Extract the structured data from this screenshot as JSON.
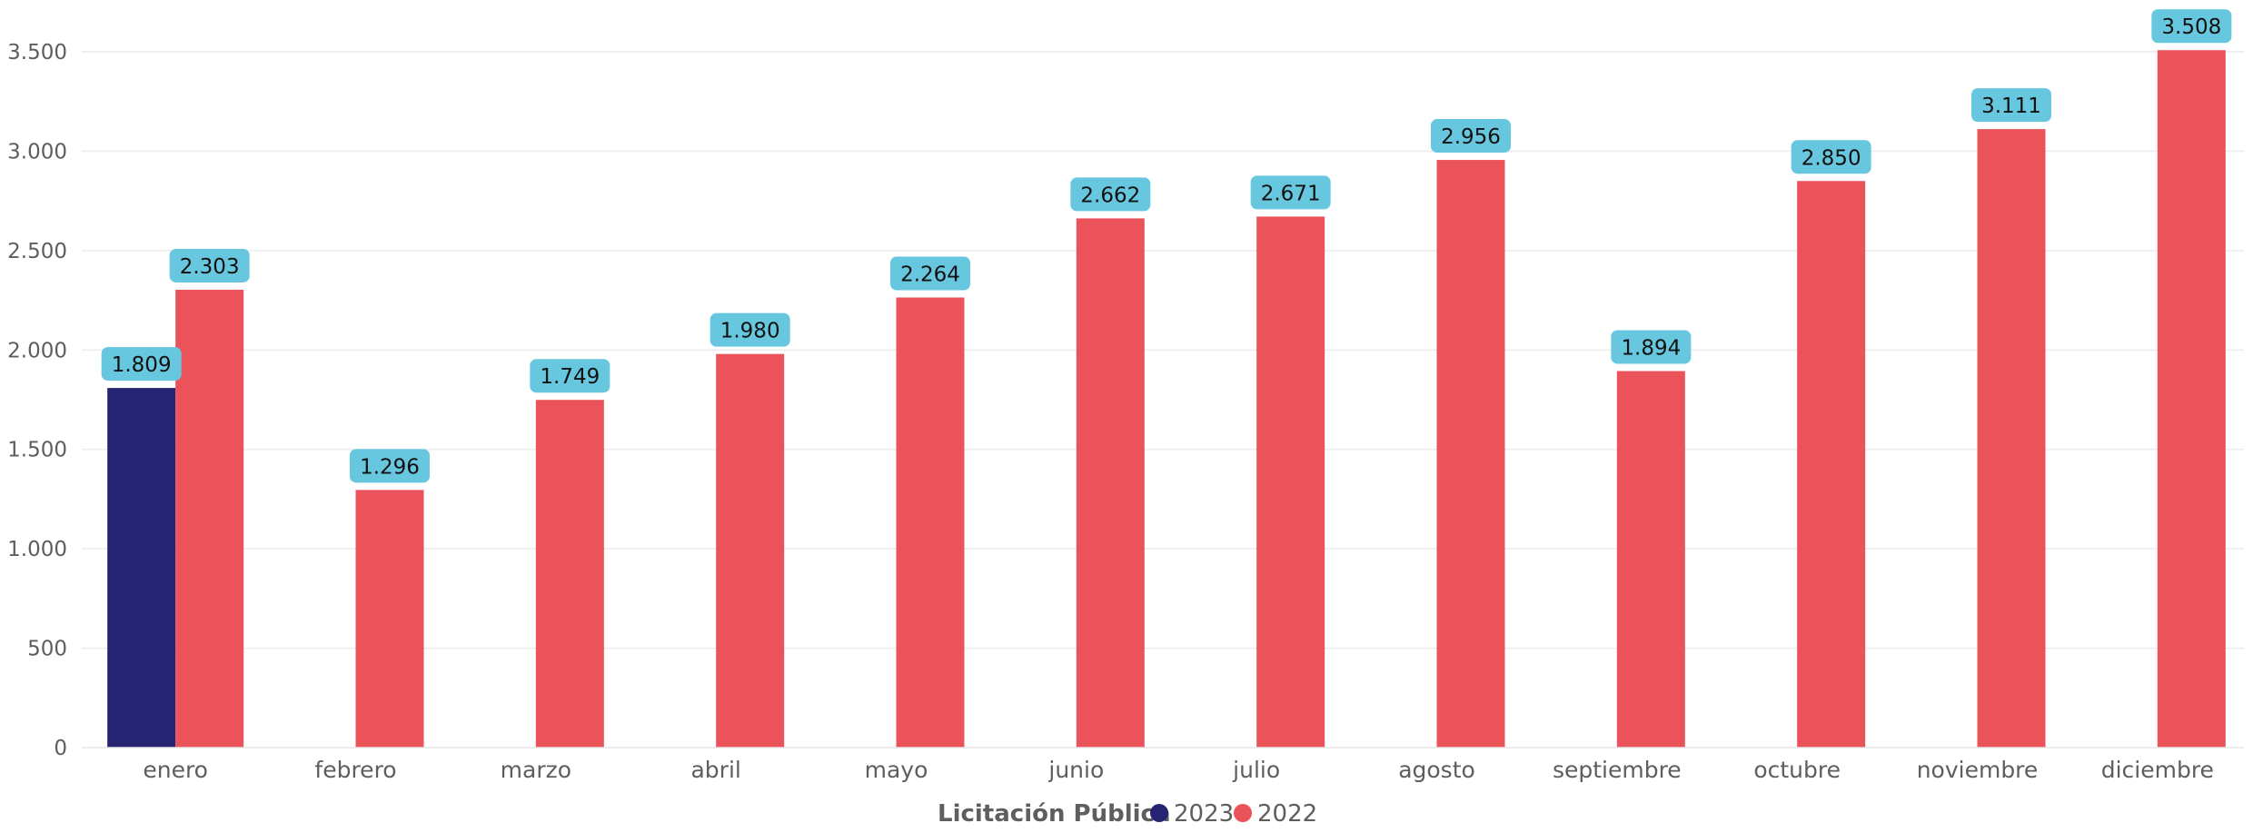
{
  "chart_data": {
    "type": "bar",
    "categories": [
      "enero",
      "febrero",
      "marzo",
      "abril",
      "mayo",
      "junio",
      "julio",
      "agosto",
      "septiembre",
      "octubre",
      "noviembre",
      "diciembre"
    ],
    "series": [
      {
        "name": "2023",
        "color": "#252574",
        "values": [
          1809,
          null,
          null,
          null,
          null,
          null,
          null,
          null,
          null,
          null,
          null,
          null
        ]
      },
      {
        "name": "2022",
        "color": "#EA535A",
        "values": [
          2303,
          1296,
          1749,
          1980,
          2264,
          2662,
          2671,
          2956,
          1894,
          2850,
          3111,
          3508
        ]
      }
    ],
    "data_labels": {
      "2023": [
        "1.809",
        "",
        "",
        "",
        "",
        "",
        "",
        "",
        "",
        "",
        "",
        ""
      ],
      "2022": [
        "2.303",
        "1.296",
        "1.749",
        "1.980",
        "2.264",
        "2.662",
        "2.671",
        "2.956",
        "1.894",
        "2.850",
        "3.111",
        "3.508"
      ]
    },
    "data_label_color": "#67C7DF",
    "yticks": [
      0,
      500,
      1000,
      1500,
      2000,
      2500,
      3000,
      3500
    ],
    "ytick_labels": [
      "0",
      "500",
      "1.000",
      "1.500",
      "2.000",
      "2.500",
      "3.000",
      "3.500"
    ],
    "ylim": [
      0,
      3500
    ],
    "grid": true,
    "legend": {
      "title": "Licitación Pública",
      "placement": "bottom-center"
    }
  }
}
